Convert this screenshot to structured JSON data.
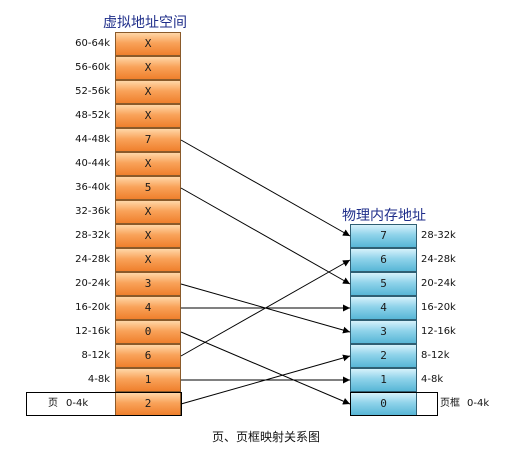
{
  "virtual": {
    "title": "虚拟地址空间",
    "rows": [
      {
        "range": "60-64k",
        "frame": "X"
      },
      {
        "range": "56-60k",
        "frame": "X"
      },
      {
        "range": "52-56k",
        "frame": "X"
      },
      {
        "range": "48-52k",
        "frame": "X"
      },
      {
        "range": "44-48k",
        "frame": "7"
      },
      {
        "range": "40-44k",
        "frame": "X"
      },
      {
        "range": "36-40k",
        "frame": "5"
      },
      {
        "range": "32-36k",
        "frame": "X"
      },
      {
        "range": "28-32k",
        "frame": "X"
      },
      {
        "range": "24-28k",
        "frame": "X"
      },
      {
        "range": "20-24k",
        "frame": "3"
      },
      {
        "range": "16-20k",
        "frame": "4"
      },
      {
        "range": "12-16k",
        "frame": "0"
      },
      {
        "range": "8-12k",
        "frame": "6"
      },
      {
        "range": "4-8k",
        "frame": "1"
      },
      {
        "range": "0-4k",
        "frame": "2"
      }
    ],
    "page_label": "页"
  },
  "physical": {
    "title": "物理内存地址",
    "rows": [
      {
        "range": "28-32k",
        "frame": "7"
      },
      {
        "range": "24-28k",
        "frame": "6"
      },
      {
        "range": "20-24k",
        "frame": "5"
      },
      {
        "range": "16-20k",
        "frame": "4"
      },
      {
        "range": "12-16k",
        "frame": "3"
      },
      {
        "range": "8-12k",
        "frame": "2"
      },
      {
        "range": "4-8k",
        "frame": "1"
      },
      {
        "range": "0-4k",
        "frame": "0"
      }
    ],
    "frame_label": "页框"
  },
  "caption": "页、页框映射关系图",
  "colors": {
    "virtual_cell": "#f9a35a",
    "physical_cell": "#8fd3ea",
    "title_text": "#1f2e8a",
    "arrow": "#000000"
  }
}
